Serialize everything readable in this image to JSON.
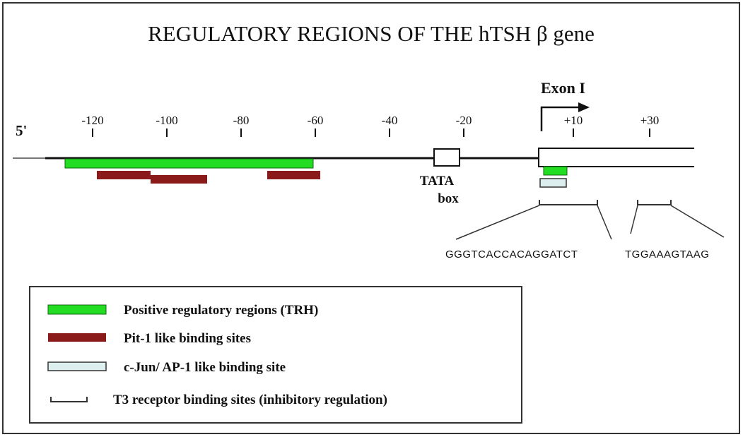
{
  "diagram": {
    "title": "REGULATORY REGIONS OF THE hTSH β gene",
    "five_prime_label": "5'",
    "exon_label": "Exon I",
    "tata_label_line1": "TATA",
    "tata_label_line2": "box",
    "ticks": [
      {
        "label": "-120",
        "pos": -120
      },
      {
        "label": "-100",
        "pos": -100
      },
      {
        "label": "-80",
        "pos": -80
      },
      {
        "label": "-60",
        "pos": -60
      },
      {
        "label": "-40",
        "pos": -40
      },
      {
        "label": "-20",
        "pos": -20
      },
      {
        "label": "+10",
        "pos": 10
      },
      {
        "label": "+30",
        "pos": 30
      }
    ],
    "sequence_1": "GGGTCACCACAGGATCT",
    "sequence_2": "TGGAAAGTAAG",
    "colors": {
      "positive": "#22dd22",
      "pit1": "#8b1a1a",
      "ap1": "#ddeeee",
      "line": "#111111",
      "frame": "#333333"
    }
  },
  "legend": {
    "items": [
      {
        "label": "Positive regulatory regions (TRH)",
        "type": "positive"
      },
      {
        "label": "Pit-1 like binding sites",
        "type": "pit1"
      },
      {
        "label": "c-Jun/ AP-1 like binding site",
        "type": "ap1"
      },
      {
        "label": "T3 receptor binding sites (inhibitory regulation)",
        "type": "t3"
      }
    ]
  }
}
